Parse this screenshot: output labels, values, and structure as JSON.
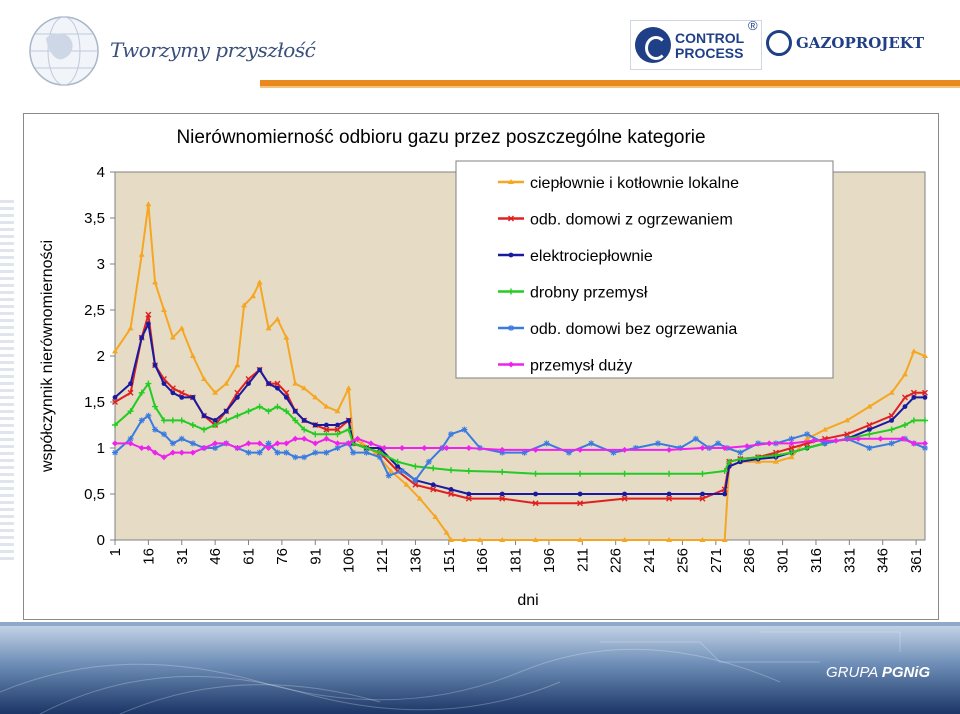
{
  "header": {
    "slogan": "Tworzymy przyszłość",
    "control_process_line1": "CONTROL",
    "control_process_line2": "PROCESS",
    "registered_mark": "®",
    "gazoprojekt": "GAZOPROJEKT"
  },
  "footer": {
    "logo_prefix": "GRUPA",
    "logo_brand": "PGNiG"
  },
  "colors": {
    "accent_bar": "#e88a1e",
    "plot_background": "#e6dcc6",
    "brand_blue": "#1f3f86"
  },
  "chart_data": {
    "type": "line",
    "title": "Nierównomierność odbioru gazu przez poszczególne kategorie",
    "xlabel": "dni",
    "ylabel": "współczynnik nierównomierności",
    "xlim": [
      1,
      365
    ],
    "ylim": [
      0,
      4
    ],
    "grid": false,
    "legend_position": "top-right",
    "x_ticks": [
      1,
      16,
      31,
      46,
      61,
      76,
      91,
      106,
      121,
      136,
      151,
      166,
      181,
      196,
      211,
      226,
      241,
      256,
      271,
      286,
      301,
      316,
      331,
      346,
      361
    ],
    "y_ticks": [
      0,
      0.5,
      1,
      1.5,
      2,
      2.5,
      3,
      3.5,
      4
    ],
    "y_tick_labels": [
      "0",
      "0,5",
      "1",
      "1,5",
      "2",
      "2,5",
      "3",
      "3,5",
      "4"
    ],
    "series": [
      {
        "name": "ciepłownie i kotłownie lokalne",
        "color": "#f5a623",
        "marker": "triangle",
        "x": [
          1,
          8,
          13,
          16,
          19,
          23,
          27,
          31,
          36,
          41,
          46,
          51,
          56,
          59,
          63,
          66,
          70,
          74,
          78,
          82,
          86,
          91,
          96,
          101,
          106,
          108,
          112,
          118,
          125,
          132,
          138,
          145,
          150,
          152,
          158,
          165,
          175,
          190,
          210,
          230,
          250,
          265,
          275,
          277,
          282,
          290,
          298,
          305,
          312,
          320,
          330,
          340,
          350,
          356,
          360,
          365
        ],
        "y": [
          2.05,
          2.3,
          3.1,
          3.65,
          2.8,
          2.5,
          2.2,
          2.3,
          2.0,
          1.75,
          1.6,
          1.7,
          1.9,
          2.55,
          2.65,
          2.8,
          2.3,
          2.4,
          2.2,
          1.7,
          1.65,
          1.55,
          1.45,
          1.4,
          1.65,
          1.1,
          1.05,
          0.95,
          0.75,
          0.6,
          0.45,
          0.25,
          0.08,
          0.0,
          0.0,
          0.0,
          0.0,
          0.0,
          0.0,
          0.0,
          0.0,
          0.0,
          0.0,
          0.8,
          0.85,
          0.85,
          0.85,
          0.9,
          1.1,
          1.2,
          1.3,
          1.45,
          1.6,
          1.8,
          2.05,
          2.0
        ]
      },
      {
        "name": "odb. domowi z ogrzewaniem",
        "color": "#e02020",
        "marker": "x",
        "x": [
          1,
          8,
          13,
          16,
          19,
          23,
          27,
          31,
          36,
          41,
          46,
          51,
          56,
          61,
          66,
          70,
          74,
          78,
          82,
          86,
          91,
          96,
          101,
          106,
          108,
          114,
          120,
          128,
          136,
          144,
          152,
          160,
          175,
          190,
          210,
          230,
          250,
          265,
          275,
          277,
          282,
          290,
          298,
          305,
          312,
          320,
          330,
          340,
          350,
          356,
          360,
          365
        ],
        "y": [
          1.5,
          1.6,
          2.2,
          2.45,
          1.9,
          1.75,
          1.65,
          1.6,
          1.55,
          1.35,
          1.25,
          1.4,
          1.6,
          1.75,
          1.85,
          1.7,
          1.7,
          1.6,
          1.4,
          1.3,
          1.25,
          1.2,
          1.2,
          1.3,
          1.05,
          1.0,
          0.95,
          0.75,
          0.6,
          0.55,
          0.5,
          0.45,
          0.45,
          0.4,
          0.4,
          0.45,
          0.45,
          0.45,
          0.55,
          0.85,
          0.88,
          0.9,
          0.95,
          1.0,
          1.05,
          1.1,
          1.15,
          1.25,
          1.35,
          1.55,
          1.6,
          1.6
        ]
      },
      {
        "name": "elektrociepłownie",
        "color": "#1a1aa0",
        "marker": "circle",
        "x": [
          1,
          8,
          13,
          16,
          19,
          23,
          27,
          31,
          36,
          41,
          46,
          51,
          56,
          61,
          66,
          70,
          74,
          78,
          82,
          86,
          91,
          96,
          101,
          106,
          108,
          114,
          120,
          128,
          136,
          144,
          152,
          160,
          175,
          190,
          210,
          230,
          250,
          265,
          275,
          277,
          282,
          290,
          298,
          305,
          312,
          320,
          330,
          340,
          350,
          356,
          360,
          365
        ],
        "y": [
          1.55,
          1.7,
          2.2,
          2.35,
          1.9,
          1.7,
          1.6,
          1.55,
          1.55,
          1.35,
          1.3,
          1.4,
          1.55,
          1.7,
          1.85,
          1.7,
          1.65,
          1.55,
          1.4,
          1.3,
          1.25,
          1.25,
          1.25,
          1.3,
          1.05,
          1.0,
          1.0,
          0.8,
          0.65,
          0.6,
          0.55,
          0.5,
          0.5,
          0.5,
          0.5,
          0.5,
          0.5,
          0.5,
          0.5,
          0.8,
          0.85,
          0.88,
          0.9,
          0.95,
          1.0,
          1.05,
          1.1,
          1.2,
          1.3,
          1.45,
          1.55,
          1.55
        ]
      },
      {
        "name": "drobny przemysł",
        "color": "#22cc22",
        "marker": "plus",
        "x": [
          1,
          8,
          13,
          16,
          19,
          23,
          27,
          31,
          36,
          41,
          46,
          51,
          56,
          61,
          66,
          70,
          74,
          78,
          82,
          86,
          91,
          96,
          101,
          106,
          108,
          114,
          120,
          128,
          136,
          144,
          152,
          160,
          175,
          190,
          210,
          230,
          250,
          265,
          275,
          277,
          282,
          290,
          298,
          305,
          312,
          320,
          330,
          340,
          350,
          356,
          360,
          365
        ],
        "y": [
          1.25,
          1.4,
          1.6,
          1.7,
          1.45,
          1.3,
          1.3,
          1.3,
          1.25,
          1.2,
          1.25,
          1.3,
          1.35,
          1.4,
          1.45,
          1.4,
          1.45,
          1.4,
          1.3,
          1.2,
          1.15,
          1.15,
          1.15,
          1.2,
          1.05,
          1.0,
          0.95,
          0.85,
          0.8,
          0.78,
          0.76,
          0.75,
          0.74,
          0.72,
          0.72,
          0.72,
          0.72,
          0.72,
          0.75,
          0.85,
          0.88,
          0.9,
          0.92,
          0.95,
          1.0,
          1.05,
          1.1,
          1.15,
          1.2,
          1.25,
          1.3,
          1.3
        ]
      },
      {
        "name": "odb. domowi bez ogrzewania",
        "color": "#3b7be0",
        "marker": "star",
        "x": [
          1,
          8,
          13,
          16,
          19,
          23,
          27,
          31,
          36,
          41,
          46,
          51,
          56,
          61,
          66,
          70,
          74,
          78,
          82,
          86,
          91,
          96,
          101,
          106,
          108,
          114,
          120,
          124,
          130,
          136,
          142,
          148,
          152,
          158,
          165,
          175,
          185,
          195,
          205,
          215,
          225,
          235,
          245,
          255,
          262,
          268,
          272,
          276,
          282,
          290,
          298,
          305,
          312,
          320,
          330,
          340,
          350,
          356,
          360,
          365
        ],
        "y": [
          0.95,
          1.1,
          1.3,
          1.35,
          1.2,
          1.15,
          1.05,
          1.1,
          1.05,
          1.0,
          1.0,
          1.05,
          1.0,
          0.95,
          0.95,
          1.05,
          0.95,
          0.95,
          0.9,
          0.9,
          0.95,
          0.95,
          1.0,
          1.05,
          0.95,
          0.95,
          0.9,
          0.7,
          0.75,
          0.65,
          0.85,
          1.0,
          1.15,
          1.2,
          1.0,
          0.95,
          0.95,
          1.05,
          0.95,
          1.05,
          0.95,
          1.0,
          1.05,
          1.0,
          1.1,
          1.0,
          1.05,
          1.0,
          0.95,
          1.05,
          1.05,
          1.1,
          1.15,
          1.05,
          1.1,
          1.0,
          1.05,
          1.1,
          1.05,
          1.0
        ]
      },
      {
        "name": "przemysł duży",
        "color": "#ee22ee",
        "marker": "diamond",
        "x": [
          1,
          8,
          13,
          16,
          19,
          23,
          27,
          31,
          36,
          41,
          46,
          51,
          56,
          61,
          66,
          70,
          74,
          78,
          82,
          86,
          91,
          96,
          101,
          106,
          110,
          116,
          122,
          130,
          140,
          150,
          160,
          175,
          190,
          210,
          230,
          250,
          265,
          275,
          285,
          295,
          305,
          315,
          325,
          335,
          345,
          355,
          360,
          365
        ],
        "y": [
          1.05,
          1.05,
          1.0,
          1.0,
          0.95,
          0.9,
          0.95,
          0.95,
          0.95,
          1.0,
          1.05,
          1.05,
          1.0,
          1.05,
          1.05,
          1.0,
          1.05,
          1.05,
          1.1,
          1.1,
          1.05,
          1.1,
          1.05,
          1.05,
          1.1,
          1.05,
          1.0,
          1.0,
          1.0,
          1.0,
          1.0,
          0.98,
          0.98,
          0.98,
          0.98,
          0.98,
          1.0,
          1.0,
          1.02,
          1.05,
          1.05,
          1.08,
          1.08,
          1.1,
          1.1,
          1.1,
          1.05,
          1.05
        ]
      }
    ]
  }
}
